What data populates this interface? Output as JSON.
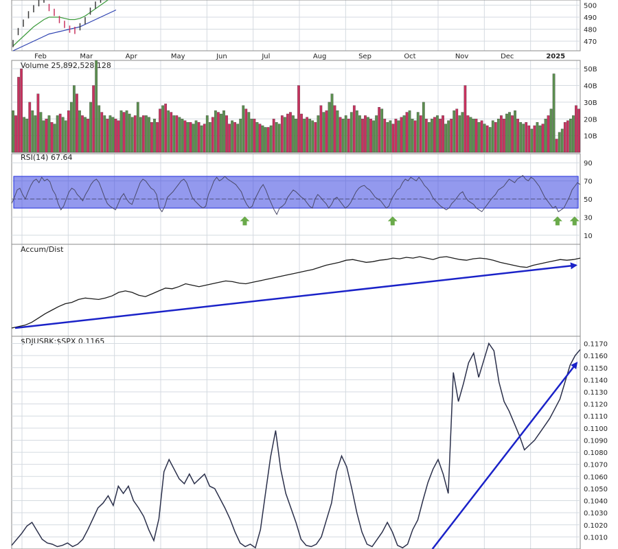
{
  "colors": {
    "background": "#ffffff",
    "grid": "#d4dae0",
    "frame": "#8a8a8a",
    "price_line": "#2a2f4a",
    "up_bar": "#5c8f50",
    "down_bar": "#c8325f",
    "ma_short": "#3a9a3a",
    "ma_long": "#2a3fb0",
    "rsi_band": "#3a45e0",
    "arrow_green": "#6aaa4a",
    "trend_arrow": "#1a22c8",
    "text": "#222222"
  },
  "chart_data": [
    {
      "id": "price",
      "type": "line",
      "title": "",
      "ylim": [
        462,
        510
      ],
      "yticks": [
        "500",
        "490",
        "480",
        "470"
      ],
      "yticks_values": [
        500,
        490,
        480,
        470
      ],
      "x_labels": [
        "Feb",
        "Mar",
        "Apr",
        "May",
        "Jun",
        "Jul",
        "Aug",
        "Sep",
        "Oct",
        "Nov",
        "Dec",
        "2025"
      ],
      "x_label_positions": [
        0.04,
        0.12,
        0.2,
        0.28,
        0.36,
        0.44,
        0.53,
        0.61,
        0.69,
        0.78,
        0.86,
        0.94
      ],
      "x": [
        0,
        1,
        2,
        3,
        4,
        5,
        6,
        7,
        8,
        9,
        10,
        11,
        12,
        13,
        14,
        15,
        16,
        17,
        18,
        19,
        20
      ],
      "close": [
        468,
        478,
        485,
        492,
        497,
        502,
        505,
        498,
        494,
        488,
        484,
        480,
        479,
        482,
        487,
        495,
        500,
        505,
        508,
        510,
        512
      ],
      "ma_short": [
        466,
        470,
        474,
        478,
        482,
        485,
        488,
        490,
        490,
        490,
        489,
        488,
        488,
        489,
        491,
        494,
        497,
        500,
        503,
        506,
        508
      ],
      "ma_long": [
        462,
        464,
        466,
        468,
        470,
        472,
        474,
        476,
        477,
        478,
        479,
        480,
        481,
        482,
        484,
        486,
        488,
        490,
        492,
        494,
        496
      ]
    },
    {
      "id": "volume",
      "type": "bar",
      "title": "Volume 25,892,528,128",
      "ylim": [
        0,
        55
      ],
      "yticks": [
        "50B",
        "40B",
        "30B",
        "20B",
        "10B"
      ],
      "yticks_values": [
        50,
        40,
        30,
        20,
        10
      ],
      "values": [
        25,
        22,
        45,
        50,
        21,
        20,
        30,
        25,
        22,
        35,
        24,
        19,
        20,
        22,
        18,
        17,
        22,
        23,
        21,
        19,
        25,
        30,
        40,
        35,
        25,
        22,
        21,
        20,
        30,
        40,
        55,
        28,
        24,
        22,
        20,
        22,
        21,
        20,
        19,
        25,
        24,
        25,
        23,
        21,
        22,
        30,
        21,
        22,
        22,
        21,
        18,
        20,
        18,
        26,
        28,
        29,
        25,
        24,
        22,
        22,
        21,
        20,
        19,
        18,
        18,
        17,
        19,
        18,
        16,
        17,
        22,
        18,
        21,
        25,
        24,
        23,
        25,
        22,
        17,
        19,
        18,
        17,
        20,
        28,
        26,
        24,
        20,
        20,
        18,
        17,
        16,
        15,
        15,
        16,
        20,
        18,
        17,
        22,
        21,
        23,
        24,
        22,
        20,
        40,
        23,
        20,
        21,
        20,
        19,
        18,
        22,
        28,
        24,
        25,
        30,
        35,
        28,
        25,
        21,
        20,
        22,
        20,
        24,
        28,
        25,
        22,
        20,
        22,
        21,
        20,
        19,
        22,
        27,
        26,
        20,
        18,
        19,
        17,
        20,
        19,
        21,
        22,
        24,
        25,
        20,
        19,
        24,
        22,
        30,
        20,
        18,
        20,
        21,
        22,
        20,
        22,
        17,
        19,
        20,
        25,
        26,
        22,
        24,
        40,
        22,
        21,
        20,
        20,
        18,
        19,
        17,
        16,
        15,
        19,
        18,
        20,
        22,
        20,
        23,
        24,
        22,
        25,
        20,
        18,
        17,
        18,
        16,
        14,
        16,
        18,
        16,
        17,
        20,
        22,
        26,
        47,
        8,
        12,
        14,
        18,
        19,
        20,
        22,
        28,
        26
      ],
      "up": [
        true,
        false,
        false,
        false,
        true,
        true,
        false,
        true,
        true,
        false,
        true,
        true,
        false,
        true,
        false,
        true,
        true,
        false,
        true,
        true,
        false,
        true,
        true,
        false,
        true,
        false,
        true,
        false,
        true,
        false,
        true,
        true,
        false,
        true,
        false,
        true,
        true,
        false,
        false,
        true,
        false,
        true,
        true,
        true,
        false,
        true,
        true,
        false,
        true,
        true,
        false,
        true,
        false,
        false,
        true,
        false,
        true,
        false,
        true,
        false,
        true,
        true,
        false,
        true,
        false,
        true,
        true,
        false,
        true,
        false,
        true,
        true,
        false,
        true,
        false,
        true,
        true,
        false,
        false,
        true,
        false,
        true,
        true,
        true,
        false,
        true,
        true,
        false,
        true,
        false,
        true,
        true,
        false,
        true,
        false,
        true,
        true,
        false,
        true,
        false,
        false,
        true,
        true,
        false,
        false,
        true,
        false,
        true,
        true,
        false,
        true,
        false,
        true,
        false,
        true,
        true,
        false,
        true,
        false,
        true,
        true,
        false,
        true,
        false,
        true,
        true,
        false,
        false,
        true,
        false,
        true,
        true,
        false,
        true,
        false,
        true,
        true,
        false,
        false,
        true,
        false,
        true,
        false,
        true,
        true,
        false,
        true,
        false,
        true,
        false,
        true,
        true,
        false,
        true,
        false,
        false,
        true,
        true,
        false,
        true,
        false,
        true,
        true,
        false,
        false,
        true,
        true,
        false,
        true,
        false,
        true,
        false,
        true,
        true,
        false,
        true,
        false,
        false,
        true,
        true,
        false,
        true,
        false,
        true,
        true,
        false,
        false,
        true,
        false,
        true,
        true,
        false,
        true,
        false,
        true,
        true,
        false,
        true,
        true,
        false,
        false,
        true,
        true
      ]
    },
    {
      "id": "rsi",
      "type": "line",
      "title": "RSI(14) 67.64",
      "ylim": [
        0,
        100
      ],
      "yticks": [
        "90",
        "70",
        "50",
        "30",
        "10"
      ],
      "yticks_values": [
        90,
        70,
        50,
        30,
        10
      ],
      "band": [
        40,
        75
      ],
      "midline": 50,
      "values": [
        45,
        52,
        60,
        62,
        55,
        50,
        58,
        65,
        70,
        72,
        68,
        74,
        70,
        72,
        69,
        60,
        55,
        45,
        38,
        42,
        50,
        58,
        62,
        60,
        55,
        52,
        48,
        55,
        60,
        66,
        70,
        72,
        68,
        60,
        52,
        45,
        42,
        40,
        38,
        45,
        52,
        56,
        50,
        46,
        44,
        52,
        60,
        68,
        72,
        70,
        66,
        62,
        60,
        55,
        40,
        36,
        42,
        52,
        55,
        58,
        62,
        66,
        70,
        72,
        68,
        60,
        52,
        48,
        45,
        42,
        40,
        42,
        55,
        62,
        70,
        74,
        70,
        72,
        75,
        72,
        70,
        68,
        66,
        62,
        58,
        50,
        44,
        40,
        42,
        50,
        56,
        62,
        66,
        60,
        52,
        45,
        38,
        33,
        40,
        42,
        45,
        52,
        56,
        60,
        58,
        55,
        52,
        50,
        46,
        42,
        40,
        50,
        55,
        52,
        48,
        45,
        40,
        44,
        50,
        52,
        48,
        44,
        40,
        42,
        46,
        52,
        58,
        62,
        64,
        65,
        62,
        60,
        56,
        52,
        50,
        48,
        44,
        40,
        42,
        50,
        55,
        60,
        62,
        68,
        72,
        70,
        74,
        72,
        70,
        74,
        70,
        65,
        62,
        58,
        52,
        48,
        45,
        42,
        40,
        38,
        40,
        45,
        48,
        52,
        56,
        58,
        52,
        48,
        46,
        44,
        40,
        38,
        36,
        40,
        44,
        48,
        52,
        55,
        60,
        62,
        64,
        68,
        72,
        70,
        68,
        72,
        74,
        76,
        72,
        70,
        74,
        72,
        68,
        64,
        58,
        52,
        48,
        44,
        40,
        42,
        36,
        38,
        40,
        46,
        52,
        60,
        64,
        68,
        66
      ],
      "markers_at": [
        0.41,
        0.67,
        0.96,
        0.99
      ]
    },
    {
      "id": "accum_dist",
      "type": "line",
      "title": "Accum/Dist",
      "values": [
        0,
        2,
        4,
        8,
        14,
        20,
        25,
        30,
        34,
        36,
        40,
        42,
        41,
        40,
        42,
        45,
        50,
        52,
        50,
        46,
        44,
        48,
        52,
        56,
        55,
        58,
        62,
        60,
        58,
        60,
        62,
        64,
        66,
        65,
        63,
        62,
        64,
        66,
        68,
        70,
        72,
        74,
        76,
        78,
        80,
        82,
        85,
        88,
        90,
        92,
        95,
        96,
        94,
        92,
        93,
        95,
        96,
        98,
        97,
        99,
        98,
        100,
        98,
        96,
        99,
        100,
        98,
        96,
        95,
        97,
        98,
        97,
        95,
        92,
        90,
        88,
        86,
        85,
        88,
        90,
        92,
        94,
        96,
        95,
        96,
        98
      ],
      "trend_from": 0,
      "trend_to": 88
    },
    {
      "id": "ratio",
      "type": "line",
      "title": "$DJUSBK:$SPX 0.1165",
      "ylim": [
        0.1,
        0.1172
      ],
      "yticks": [
        "0.1170",
        "0.1160",
        "0.1150",
        "0.1140",
        "0.1130",
        "0.1120",
        "0.1110",
        "0.1100",
        "0.1090",
        "0.1080",
        "0.1070",
        "0.1060",
        "0.1050",
        "0.1040",
        "0.1030",
        "0.1020",
        "0.1010"
      ],
      "yticks_values": [
        0.117,
        0.116,
        0.115,
        0.114,
        0.113,
        0.112,
        0.111,
        0.11,
        0.109,
        0.108,
        0.107,
        0.106,
        0.105,
        0.104,
        0.103,
        0.102,
        0.101
      ],
      "values": [
        0.1003,
        0.1008,
        0.1013,
        0.1019,
        0.1022,
        0.1015,
        0.1008,
        0.1005,
        0.1004,
        0.1002,
        0.1003,
        0.1005,
        0.1002,
        0.1004,
        0.1008,
        0.1016,
        0.1025,
        0.1034,
        0.1038,
        0.1044,
        0.1036,
        0.1052,
        0.1046,
        0.1052,
        0.104,
        0.1034,
        0.1027,
        0.1016,
        0.1007,
        0.1025,
        0.1064,
        0.1074,
        0.1066,
        0.1058,
        0.1054,
        0.1062,
        0.1054,
        0.1058,
        0.1062,
        0.1052,
        0.105,
        0.1042,
        0.1034,
        0.1025,
        0.1014,
        0.1005,
        0.1002,
        0.1004,
        0.1001,
        0.1016,
        0.1046,
        0.1076,
        0.1098,
        0.1066,
        0.1046,
        0.1034,
        0.1022,
        0.1008,
        0.1003,
        0.1002,
        0.1004,
        0.101,
        0.1024,
        0.1038,
        0.1064,
        0.1077,
        0.1068,
        0.105,
        0.103,
        0.1014,
        0.1004,
        0.1002,
        0.1008,
        0.1014,
        0.1022,
        0.1014,
        0.1003,
        0.1001,
        0.1004,
        0.1016,
        0.1024,
        0.104,
        0.1055,
        0.1066,
        0.1074,
        0.1062,
        0.1046,
        0.1146,
        0.1122,
        0.1137,
        0.1154,
        0.1162,
        0.1142,
        0.1156,
        0.117,
        0.1164,
        0.1138,
        0.1122,
        0.1114,
        0.1104,
        0.1094,
        0.1082,
        0.1086,
        0.109,
        0.1096,
        0.1102,
        0.1108,
        0.1116,
        0.1124,
        0.1138,
        0.1152,
        0.116,
        0.1165
      ],
      "trend_from": 0.1,
      "trend_to": 0.1154
    }
  ]
}
